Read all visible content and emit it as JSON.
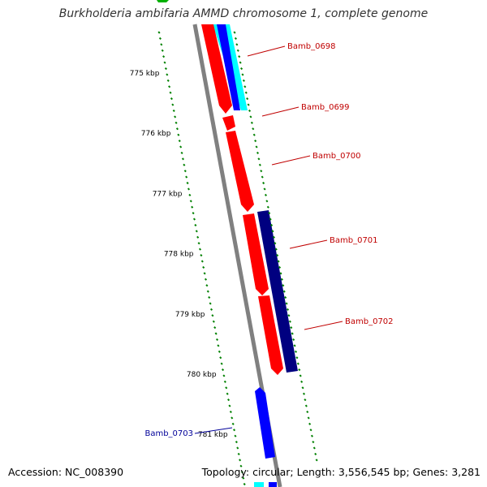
{
  "header": {
    "title": "Burkholderia ambifaria AMMD chromosome 1, complete genome"
  },
  "footer": {
    "accession": "Accession: NC_008390",
    "topology": "Topology: circular; Length: 3,556,545 bp; Genes: 3,281"
  },
  "colors": {
    "backbone": "#808080",
    "tick": "#008000",
    "forward_gene": "#ff0000",
    "reverse_gene": "#000080",
    "blue_gene": "#0000ff",
    "cyan_gene": "#00ffff",
    "label_red": "#c00000",
    "label_blue": "#000099"
  },
  "ruler": {
    "unit": "kbp",
    "ticks": [
      {
        "kbp": 775,
        "label": "775 kbp"
      },
      {
        "kbp": 776,
        "label": "776 kbp"
      },
      {
        "kbp": 777,
        "label": "777 kbp"
      },
      {
        "kbp": 778,
        "label": "778 kbp"
      },
      {
        "kbp": 779,
        "label": "779 kbp"
      },
      {
        "kbp": 780,
        "label": "780 kbp"
      },
      {
        "kbp": 781,
        "label": "781 kbp"
      }
    ]
  },
  "gene_labels": [
    {
      "name": "Bamb_0698",
      "color": "label_red"
    },
    {
      "name": "Bamb_0699",
      "color": "label_red"
    },
    {
      "name": "Bamb_0700",
      "color": "label_red"
    },
    {
      "name": "Bamb_0701",
      "color": "label_red"
    },
    {
      "name": "Bamb_0702",
      "color": "label_red"
    },
    {
      "name": "Bamb_0703",
      "color": "label_blue"
    }
  ]
}
